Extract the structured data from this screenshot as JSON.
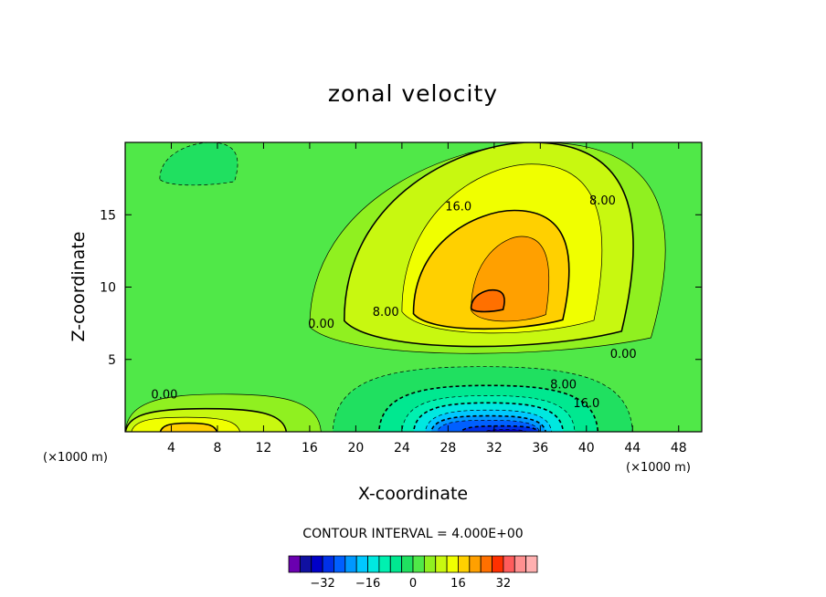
{
  "chart_data": {
    "type": "heatmap",
    "subtype": "filled-contour",
    "title": "zonal velocity",
    "xlabel": "X-coordinate",
    "ylabel": "Z-coordinate",
    "x_unit_label": "(×1000 m)",
    "x_unit_label_right": "(×1000 m)",
    "xlim": [
      0,
      50
    ],
    "ylim": [
      0,
      20
    ],
    "x_ticks": [
      "4",
      "8",
      "12",
      "16",
      "20",
      "24",
      "28",
      "32",
      "36",
      "40",
      "44",
      "48"
    ],
    "x_tick_values": [
      4,
      8,
      12,
      16,
      20,
      24,
      28,
      32,
      36,
      40,
      44,
      48
    ],
    "y_ticks": [
      "5",
      "10",
      "15"
    ],
    "y_tick_values": [
      5,
      10,
      15
    ],
    "contour_interval_text": "CONTOUR INTERVAL = 4.000E+00",
    "contour_interval": 4.0,
    "contour_labels": [
      {
        "text": "16.0",
        "x": 28.9,
        "y": 15.3
      },
      {
        "text": "8.00",
        "x": 41.4,
        "y": 15.7
      },
      {
        "text": "8.00",
        "x": 22.6,
        "y": 8.0
      },
      {
        "text": "0.00",
        "x": 17.0,
        "y": 7.2
      },
      {
        "text": "0.00",
        "x": 3.4,
        "y": 2.3
      },
      {
        "text": "0.00",
        "x": 43.2,
        "y": 5.1
      },
      {
        "text": "8.00",
        "x": 38.0,
        "y": 3.0
      },
      {
        "text": "16.0",
        "x": 40.0,
        "y": 1.7
      }
    ],
    "field_regions": [
      {
        "level": 0,
        "x": [
          0,
          50
        ],
        "y": [
          0,
          20
        ]
      },
      {
        "level": -4,
        "x": [
          3,
          10
        ],
        "y": [
          17,
          20
        ]
      },
      {
        "level": 4,
        "x": [
          16,
          48
        ],
        "y": [
          5,
          20
        ]
      },
      {
        "level": 8,
        "x": [
          19,
          45
        ],
        "y": [
          5.5,
          20
        ]
      },
      {
        "level": 12,
        "x": [
          24,
          42
        ],
        "y": [
          6.5,
          18.5
        ]
      },
      {
        "level": 16,
        "x": [
          25,
          39
        ],
        "y": [
          6.9,
          15.3
        ]
      },
      {
        "level": 20,
        "x": [
          30,
          37
        ],
        "y": [
          7.5,
          13.5
        ]
      },
      {
        "level": 24,
        "x": [
          30,
          33
        ],
        "y": [
          8.3,
          9.8
        ]
      },
      {
        "level": 4,
        "x": [
          0,
          17
        ],
        "y": [
          0,
          2.6
        ]
      },
      {
        "level": 8,
        "x": [
          0,
          14
        ],
        "y": [
          0,
          1.6
        ]
      },
      {
        "level": 12,
        "x": [
          0.5,
          10
        ],
        "y": [
          0,
          1
        ]
      },
      {
        "level": 16,
        "x": [
          3,
          8
        ],
        "y": [
          0,
          0.6
        ]
      },
      {
        "level": -4,
        "x": [
          18,
          44
        ],
        "y": [
          0,
          4.5
        ]
      },
      {
        "level": -8,
        "x": [
          22,
          41
        ],
        "y": [
          0,
          3.2
        ]
      },
      {
        "level": -12,
        "x": [
          24,
          39
        ],
        "y": [
          0,
          2.5
        ]
      },
      {
        "level": -16,
        "x": [
          25,
          38
        ],
        "y": [
          0,
          2.0
        ]
      },
      {
        "level": -20,
        "x": [
          26,
          37
        ],
        "y": [
          0,
          1.5
        ]
      },
      {
        "level": -24,
        "x": [
          26.5,
          36.5
        ],
        "y": [
          0,
          1.1
        ]
      },
      {
        "level": -28,
        "x": [
          27,
          36
        ],
        "y": [
          0,
          0.8
        ]
      },
      {
        "level": -32,
        "x": [
          29,
          36
        ],
        "y": [
          0,
          0.4
        ]
      },
      {
        "level": -36,
        "x": [
          31,
          35
        ],
        "y": [
          0,
          0.15
        ]
      }
    ],
    "colorbar": {
      "ticks": [
        "−32",
        "−16",
        "0",
        "16",
        "32"
      ],
      "tick_values": [
        -32,
        -16,
        0,
        16,
        32
      ],
      "levels": [
        -40,
        -36,
        -32,
        -28,
        -24,
        -20,
        -16,
        -12,
        -8,
        -4,
        0,
        4,
        8,
        12,
        16,
        20,
        24,
        28,
        32,
        36,
        40
      ],
      "colors": [
        "#6a00b0",
        "#1010a0",
        "#0000c8",
        "#0030e8",
        "#0060ff",
        "#0098ff",
        "#00c8ff",
        "#00e8e0",
        "#00f0b0",
        "#00e890",
        "#20e060",
        "#50e848",
        "#90f020",
        "#c8f810",
        "#f0ff00",
        "#ffd000",
        "#ffa000",
        "#ff7000",
        "#ff3000",
        "#ff5c5c",
        "#ff9090",
        "#ffb0b0"
      ]
    }
  }
}
